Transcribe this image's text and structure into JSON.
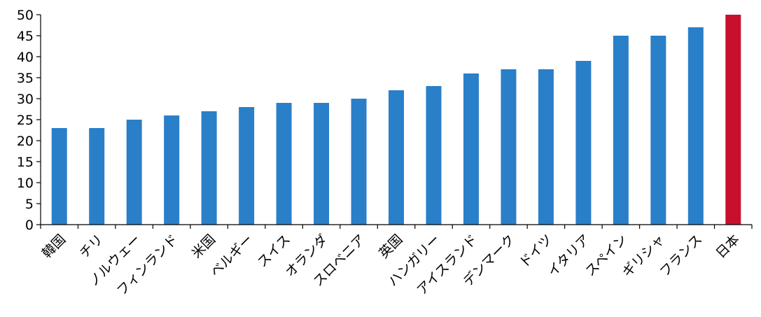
{
  "chart_data": {
    "type": "bar",
    "title": "",
    "xlabel": "",
    "ylabel": "",
    "ylim": [
      0,
      50
    ],
    "yticks": [
      0,
      5,
      10,
      15,
      20,
      25,
      30,
      35,
      40,
      45,
      50
    ],
    "grid": false,
    "categories": [
      "韓国",
      "チリ",
      "ノルウェー",
      "フィンランド",
      "米国",
      "ベルギー",
      "スイス",
      "オランダ",
      "スロベニア",
      "英国",
      "ハンガリー",
      "アイスランド",
      "デンマーク",
      "ドイツ",
      "イタリア",
      "スペイン",
      "ギリシャ",
      "フランス",
      "日本"
    ],
    "values": [
      23,
      23,
      25,
      26,
      27,
      28,
      29,
      29,
      30,
      32,
      33,
      36,
      37,
      37,
      39,
      45,
      45,
      47,
      50
    ],
    "bar_color": "#2a7fc9",
    "highlight_color": "#c8102e",
    "highlight_category": "日本"
  }
}
